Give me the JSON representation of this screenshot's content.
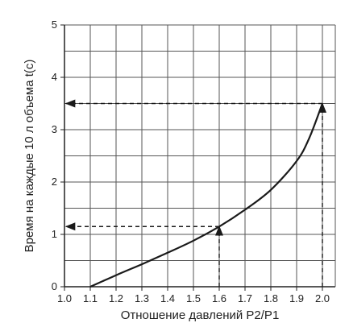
{
  "chart_data": {
    "type": "line",
    "xlabel": "Отношение давлений P2/P1",
    "ylabel": "Время на каждые 10 л объема t(c)",
    "xlim": [
      1.0,
      2.05
    ],
    "ylim": [
      0,
      5
    ],
    "x_ticks": [
      "1.0",
      "1.1",
      "1.2",
      "1.3",
      "1.4",
      "1.5",
      "1.6",
      "1.7",
      "1.8",
      "1.9",
      "2.0"
    ],
    "y_ticks": [
      "0",
      "1",
      "2",
      "3",
      "4",
      "5"
    ],
    "grid": true,
    "series": [
      {
        "x": [
          1.1,
          1.2,
          1.3,
          1.4,
          1.5,
          1.6,
          1.7,
          1.8,
          1.9,
          1.95,
          2.0
        ],
        "y": [
          0.0,
          0.22,
          0.43,
          0.65,
          0.88,
          1.15,
          1.47,
          1.85,
          2.4,
          2.85,
          3.5
        ]
      }
    ],
    "annotations": [
      {
        "type": "dashed-arrow-path",
        "x": 1.6,
        "y": 1.15
      },
      {
        "type": "dashed-arrow-path",
        "x": 2.0,
        "y": 3.5
      }
    ],
    "colors": {
      "line": "#1a1a1a",
      "grid": "#555555",
      "frame": "#222222"
    }
  }
}
